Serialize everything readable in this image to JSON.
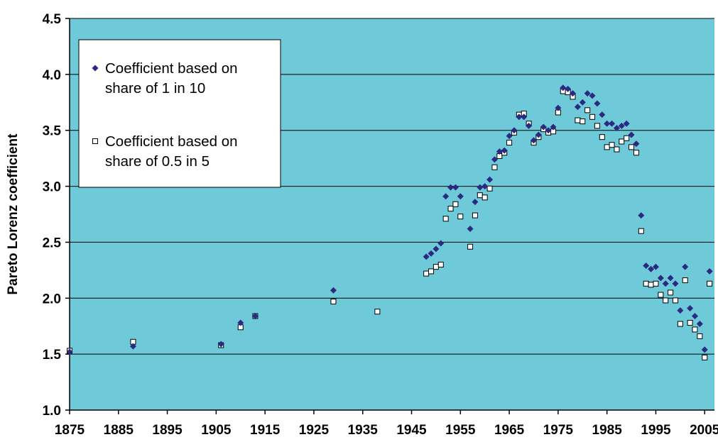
{
  "chart_data": {
    "type": "scatter",
    "title": "",
    "xlabel": "",
    "ylabel": "Pareto Lorenz coefficient",
    "xlim": [
      1875,
      2007
    ],
    "ylim": [
      1.0,
      4.5
    ],
    "x_ticks": [
      "1875",
      "1885",
      "1895",
      "1905",
      "1915",
      "1925",
      "1935",
      "1945",
      "1955",
      "1965",
      "1975",
      "1985",
      "1995",
      "2005"
    ],
    "y_ticks": [
      "1.0",
      "1.5",
      "2.0",
      "2.5",
      "3.0",
      "3.5",
      "4.0",
      "4.5"
    ],
    "grid": "horizontal",
    "legend_position": "top-left",
    "colors": {
      "plot_background": "#6ECAD8",
      "series1": "#2A2A80",
      "series2_fill": "#ffffff",
      "series2_stroke": "#000000"
    },
    "series": [
      {
        "name": "Coefficient based on share of 1 in 10",
        "legend_lines": [
          "Coefficient based on",
          "share of 1 in 10"
        ],
        "marker": "diamond",
        "points": [
          [
            1875,
            1.52
          ],
          [
            1888,
            1.57
          ],
          [
            1906,
            1.59
          ],
          [
            1910,
            1.78
          ],
          [
            1913,
            1.84
          ],
          [
            1929,
            2.07
          ],
          [
            1948,
            2.37
          ],
          [
            1949,
            2.4
          ],
          [
            1950,
            2.44
          ],
          [
            1951,
            2.49
          ],
          [
            1952,
            2.91
          ],
          [
            1953,
            2.99
          ],
          [
            1954,
            2.99
          ],
          [
            1955,
            2.91
          ],
          [
            1957,
            2.62
          ],
          [
            1958,
            2.86
          ],
          [
            1959,
            2.99
          ],
          [
            1960,
            3.0
          ],
          [
            1961,
            3.06
          ],
          [
            1962,
            3.24
          ],
          [
            1963,
            3.31
          ],
          [
            1964,
            3.32
          ],
          [
            1965,
            3.45
          ],
          [
            1966,
            3.5
          ],
          [
            1967,
            3.62
          ],
          [
            1968,
            3.62
          ],
          [
            1969,
            3.54
          ],
          [
            1970,
            3.41
          ],
          [
            1971,
            3.46
          ],
          [
            1972,
            3.53
          ],
          [
            1973,
            3.5
          ],
          [
            1974,
            3.53
          ],
          [
            1975,
            3.7
          ],
          [
            1976,
            3.88
          ],
          [
            1977,
            3.87
          ],
          [
            1978,
            3.83
          ],
          [
            1979,
            3.71
          ],
          [
            1980,
            3.75
          ],
          [
            1981,
            3.83
          ],
          [
            1982,
            3.81
          ],
          [
            1983,
            3.74
          ],
          [
            1984,
            3.64
          ],
          [
            1985,
            3.56
          ],
          [
            1986,
            3.56
          ],
          [
            1987,
            3.52
          ],
          [
            1988,
            3.54
          ],
          [
            1989,
            3.56
          ],
          [
            1990,
            3.46
          ],
          [
            1991,
            3.38
          ],
          [
            1992,
            2.74
          ],
          [
            1993,
            2.29
          ],
          [
            1994,
            2.26
          ],
          [
            1995,
            2.28
          ],
          [
            1996,
            2.18
          ],
          [
            1997,
            2.13
          ],
          [
            1998,
            2.18
          ],
          [
            1999,
            2.13
          ],
          [
            2000,
            1.89
          ],
          [
            2001,
            2.28
          ],
          [
            2002,
            1.91
          ],
          [
            2003,
            1.84
          ],
          [
            2004,
            1.77
          ],
          [
            2005,
            1.54
          ],
          [
            2006,
            2.24
          ]
        ]
      },
      {
        "name": "Coefficient based on share of 0.5 in 5",
        "legend_lines": [
          "Coefficient based on",
          "share of 0.5 in 5"
        ],
        "marker": "square-open",
        "points": [
          [
            1875,
            1.53
          ],
          [
            1888,
            1.61
          ],
          [
            1906,
            1.58
          ],
          [
            1910,
            1.74
          ],
          [
            1913,
            1.84
          ],
          [
            1929,
            1.97
          ],
          [
            1938,
            1.88
          ],
          [
            1948,
            2.22
          ],
          [
            1949,
            2.24
          ],
          [
            1950,
            2.28
          ],
          [
            1951,
            2.3
          ],
          [
            1952,
            2.71
          ],
          [
            1953,
            2.8
          ],
          [
            1954,
            2.84
          ],
          [
            1955,
            2.73
          ],
          [
            1957,
            2.46
          ],
          [
            1958,
            2.74
          ],
          [
            1959,
            2.92
          ],
          [
            1960,
            2.9
          ],
          [
            1961,
            2.98
          ],
          [
            1962,
            3.17
          ],
          [
            1963,
            3.27
          ],
          [
            1964,
            3.3
          ],
          [
            1965,
            3.39
          ],
          [
            1966,
            3.48
          ],
          [
            1967,
            3.64
          ],
          [
            1968,
            3.65
          ],
          [
            1969,
            3.56
          ],
          [
            1970,
            3.39
          ],
          [
            1971,
            3.44
          ],
          [
            1972,
            3.51
          ],
          [
            1973,
            3.48
          ],
          [
            1974,
            3.49
          ],
          [
            1975,
            3.66
          ],
          [
            1976,
            3.85
          ],
          [
            1977,
            3.84
          ],
          [
            1978,
            3.8
          ],
          [
            1979,
            3.59
          ],
          [
            1980,
            3.58
          ],
          [
            1981,
            3.68
          ],
          [
            1982,
            3.62
          ],
          [
            1983,
            3.54
          ],
          [
            1984,
            3.44
          ],
          [
            1985,
            3.35
          ],
          [
            1986,
            3.37
          ],
          [
            1987,
            3.33
          ],
          [
            1988,
            3.4
          ],
          [
            1989,
            3.43
          ],
          [
            1990,
            3.35
          ],
          [
            1991,
            3.3
          ],
          [
            1992,
            2.6
          ],
          [
            1993,
            2.13
          ],
          [
            1994,
            2.12
          ],
          [
            1995,
            2.13
          ],
          [
            1996,
            2.03
          ],
          [
            1997,
            1.98
          ],
          [
            1998,
            2.05
          ],
          [
            1999,
            1.98
          ],
          [
            2000,
            1.77
          ],
          [
            2001,
            2.16
          ],
          [
            2002,
            1.78
          ],
          [
            2003,
            1.72
          ],
          [
            2004,
            1.66
          ],
          [
            2005,
            1.47
          ],
          [
            2006,
            2.13
          ]
        ]
      }
    ]
  }
}
